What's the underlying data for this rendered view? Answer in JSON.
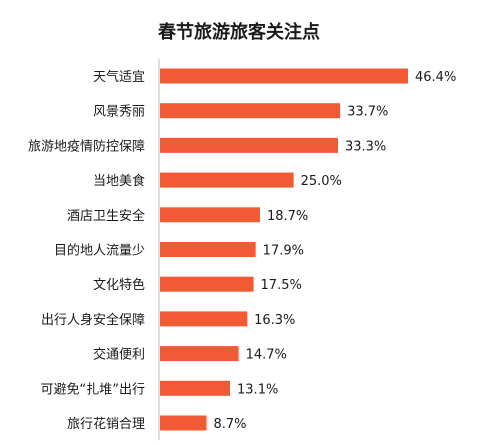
{
  "chart_data": {
    "type": "bar",
    "orientation": "horizontal",
    "title": "春节旅游旅客关注点",
    "categories": [
      "天气适宜",
      "风景秀丽",
      "旅游地疫情防控保障",
      "当地美食",
      "酒店卫生安全",
      "目的地人流量少",
      "文化特色",
      "出行人身安全保障",
      "交通便利",
      "可避免“扎堆”出行",
      "旅行花销合理"
    ],
    "values": [
      46.4,
      33.7,
      33.3,
      25.0,
      18.7,
      17.9,
      17.5,
      16.3,
      14.7,
      13.1,
      8.7
    ],
    "value_labels": [
      "46.4%",
      "33.7%",
      "33.3%",
      "25.0%",
      "18.7%",
      "17.9%",
      "17.5%",
      "16.3%",
      "14.7%",
      "13.1%",
      "8.7%"
    ],
    "unit": "%",
    "bar_color": "#f05a35",
    "axis_line_color": "#bfbfbf",
    "grid": false,
    "legend": "none"
  }
}
